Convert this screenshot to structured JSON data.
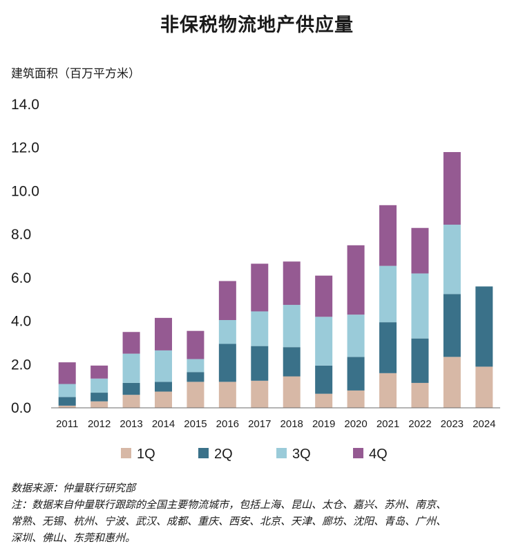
{
  "chart_data": {
    "type": "bar",
    "stacked": true,
    "title": "非保税物流地产供应量",
    "ylabel": "建筑面积（百万平方米）",
    "xlabel": "",
    "ylim": [
      0,
      14
    ],
    "yticks": [
      "0.0",
      "2.0",
      "4.0",
      "6.0",
      "8.0",
      "10.0",
      "12.0",
      "14.0"
    ],
    "categories": [
      "2011",
      "2012",
      "2013",
      "2014",
      "2015",
      "2016",
      "2017",
      "2018",
      "2019",
      "2020",
      "2021",
      "2022",
      "2023",
      "2024"
    ],
    "series": [
      {
        "name": "1Q",
        "color": "#d7b8a6",
        "values": [
          0.1,
          0.3,
          0.6,
          0.75,
          1.2,
          1.2,
          1.25,
          1.45,
          0.65,
          0.8,
          1.6,
          1.15,
          2.35,
          1.9
        ]
      },
      {
        "name": "2Q",
        "color": "#3a7189",
        "values": [
          0.4,
          0.4,
          0.55,
          0.45,
          0.45,
          1.75,
          1.6,
          1.35,
          1.3,
          1.55,
          2.35,
          2.05,
          2.9,
          3.7
        ]
      },
      {
        "name": "3Q",
        "color": "#9acbd9",
        "values": [
          0.6,
          0.65,
          1.35,
          1.45,
          0.6,
          1.1,
          1.6,
          1.95,
          2.25,
          1.95,
          2.6,
          3.0,
          3.2,
          0
        ]
      },
      {
        "name": "4Q",
        "color": "#955a92",
        "values": [
          1.0,
          0.6,
          1.0,
          1.5,
          1.3,
          1.8,
          2.2,
          2.0,
          1.9,
          3.2,
          2.8,
          2.1,
          3.35,
          0
        ]
      }
    ],
    "legend": "bottom",
    "grid": false
  },
  "notes": {
    "source": "数据来源：仲量联行研究部",
    "note_line1": "注：数据来自仲量联行跟踪的全国主要物流城市，包括上海、昆山、太仓、嘉兴、苏州、南京、",
    "note_line2": "常熟、无锡、杭州、宁波、武汉、成都、重庆、西安、北京、天津、廊坊、沈阳、青岛、广州、",
    "note_line3": "深圳、佛山、东莞和惠州。"
  }
}
